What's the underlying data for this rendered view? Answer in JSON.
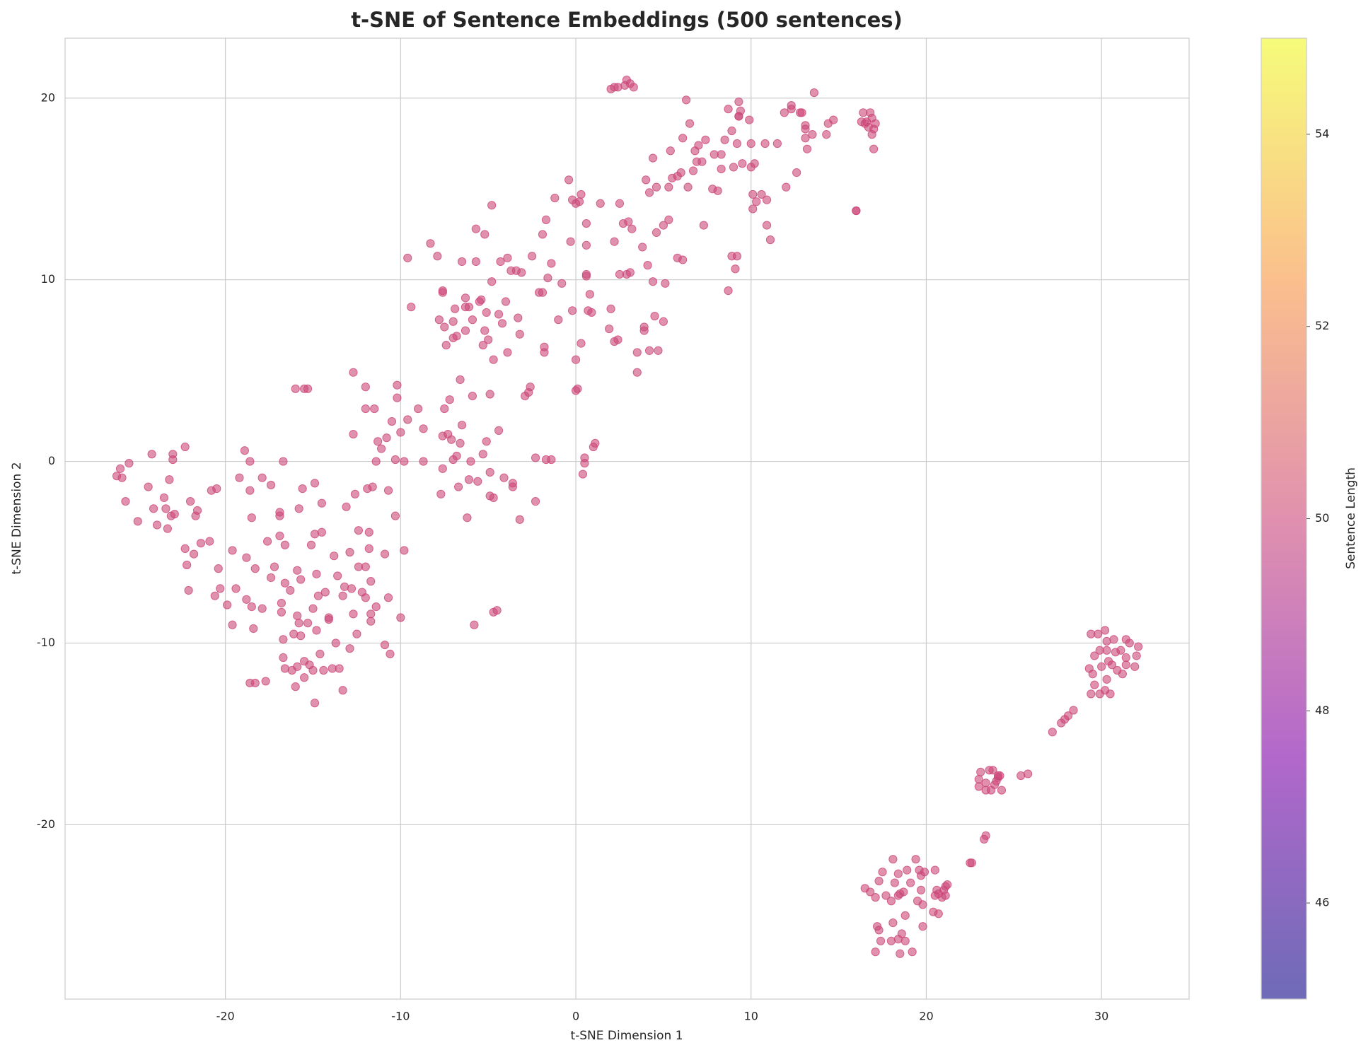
{
  "chart_data": {
    "type": "scatter",
    "title": "t-SNE of Sentence Embeddings (500 sentences)",
    "x_label": "t-SNE Dimension 1",
    "y_label": "t-SNE Dimension 2",
    "color": "#cc4778",
    "alpha": 0.6,
    "grid": true,
    "xlim": [
      -29.15,
      35.0
    ],
    "ylim": [
      -29.6,
      23.3
    ],
    "xticks": [
      -20,
      -10,
      0,
      10,
      20,
      30
    ],
    "yticks": [
      -20,
      -10,
      0,
      10,
      20
    ],
    "colorbar": {
      "label": "Sentence Length",
      "colormap": "plasma",
      "lim": [
        45,
        55
      ],
      "ticks": [
        46,
        48,
        50,
        52,
        54
      ]
    },
    "x": [
      -26.2,
      -26,
      -25.9,
      -25.7,
      -25.5,
      -25,
      -24.4,
      -24.2,
      -24.1,
      -23.9,
      -23.5,
      -23.4,
      -23.3,
      -23.2,
      -23.1,
      -23,
      -23,
      -22.9,
      -22.3,
      -22.3,
      -22.2,
      -22.1,
      -22,
      -21.8,
      -21.7,
      -21.6,
      -21.4,
      -20.9,
      -20.8,
      -20.6,
      -20.5,
      -20.4,
      -20.3,
      -19.9,
      -19.6,
      -19.6,
      -19.4,
      -19.2,
      -18.9,
      -18.8,
      -18.8,
      -18.6,
      -18.6,
      -18.6,
      -18.5,
      -18.5,
      -18.4,
      -18.3,
      -18.3,
      -17.9,
      -17.9,
      -17.7,
      -17.6,
      -17.4,
      -17.4,
      -17.2,
      -16.9,
      -16.9,
      -16.9,
      -16.8,
      -16.8,
      -16.7,
      -16.7,
      -16.7,
      -16.6,
      -16.6,
      -16.6,
      -16.3,
      -16.2,
      -16.1,
      -16,
      -16,
      -15.9,
      -15.9,
      -15.9,
      -15.8,
      -15.8,
      -15.7,
      -15.7,
      -15.6,
      -15.5,
      -15.5,
      -15.5,
      -15.3,
      -15.3,
      -15.2,
      -15.1,
      -15,
      -15,
      -14.9,
      -14.9,
      -14.9,
      -14.8,
      -14.8,
      -14.7,
      -14.6,
      -14.5,
      -14.5,
      -14.4,
      -14.3,
      -14.1,
      -14.1,
      -13.9,
      -13.8,
      -13.7,
      -13.6,
      -13.5,
      -13.3,
      -13.3,
      -13.2,
      -13.1,
      -12.9,
      -12.9,
      -12.8,
      -12.7,
      -12.7,
      -12.7,
      -12.6,
      -12.5,
      -12.4,
      -12.4,
      -12.2,
      -12,
      -12,
      -12,
      -12,
      -11.9,
      -11.8,
      -11.8,
      -11.7,
      -11.7,
      -11.7,
      -11.6,
      -11.5,
      -11.4,
      -11.4,
      -11.3,
      -11.1,
      -10.9,
      -10.9,
      -10.8,
      -10.7,
      -10.7,
      -10.6,
      -10.5,
      -10.3,
      -10.3,
      -10.2,
      -10.2,
      -10,
      -10,
      -9.8,
      -9.8,
      -9.6,
      -9.6,
      -9.4,
      -9,
      -8.7,
      -8.7,
      -8.3,
      -7.9,
      -7.8,
      -7.7,
      -7.6,
      -7.6,
      -7.6,
      -7.6,
      -7.5,
      -7.5,
      -7.4,
      -7.3,
      -7.2,
      -7.1,
      -7,
      -7,
      -7,
      -6.9,
      -6.8,
      -6.8,
      -6.7,
      -6.6,
      -6.6,
      -6.5,
      -6.5,
      -6.3,
      -6.3,
      -6.3,
      -6.2,
      -6.1,
      -6.1,
      -6,
      -5.9,
      -5.9,
      -5.8,
      -5.7,
      -5.7,
      -5.6,
      -5.5,
      -5.4,
      -5.3,
      -5.3,
      -5.2,
      -5.2,
      -5.1,
      -5.1,
      -5,
      -4.9,
      -4.9,
      -4.9,
      -4.8,
      -4.8,
      -4.7,
      -4.7,
      -4.7,
      -4.5,
      -4.4,
      -4.4,
      -4.3,
      -4.2,
      -4.1,
      -4,
      -3.9,
      -3.9,
      -3.7,
      -3.6,
      -3.6,
      -3.4,
      -3.3,
      -3.2,
      -3.2,
      -3.1,
      -2.9,
      -2.7,
      -2.5,
      -2.6,
      -2.3,
      -2.3,
      -2.1,
      -1.9,
      -1.9,
      -1.8,
      -1.8,
      -1.7,
      -1.7,
      -1.6,
      -1.4,
      -1.4,
      -1.2,
      -1,
      -0.8,
      -0.4,
      -0.3,
      -0.2,
      -0.2,
      0,
      0,
      0,
      0.1,
      0.2,
      0.3,
      0.3,
      0.4,
      0.5,
      0.5,
      0.6,
      0.6,
      0.6,
      0.6,
      0.7,
      0.8,
      0.9,
      1,
      1.1,
      1.4,
      1.9,
      2,
      2,
      2.2,
      2.2,
      2.2,
      2.4,
      2.4,
      2.5,
      2.5,
      2.7,
      2.8,
      2.9,
      2.9,
      3,
      3.1,
      3.1,
      3.2,
      3.3,
      3.5,
      3.5,
      3.8,
      3.9,
      3.9,
      4,
      4.1,
      4.2,
      4.2,
      4.4,
      4.4,
      4.5,
      4.6,
      4.6,
      4.7,
      5,
      5,
      5.1,
      5.3,
      5.3,
      5.4,
      5.5,
      5.8,
      5.8,
      6,
      6.1,
      6.1,
      6.3,
      6.4,
      6.5,
      6.7,
      6.8,
      6.9,
      7,
      7.2,
      7.3,
      7.4,
      7.8,
      7.9,
      8.1,
      8.3,
      8.3,
      8.5,
      8.7,
      8.7,
      8.9,
      8.9,
      9,
      9.1,
      9.2,
      9.2,
      9.3,
      9.3,
      9.3,
      9.4,
      9.5,
      9.9,
      10,
      10,
      10.1,
      10.1,
      10.2,
      10.3,
      10.6,
      10.8,
      10.9,
      10.9,
      11.1,
      11.5,
      11.9,
      12,
      12.3,
      12.3,
      12.6,
      12.8,
      12.9,
      13.1,
      13.1,
      13.1,
      13.2,
      13.5,
      13.6,
      14.3,
      14.4,
      14.7,
      16,
      16,
      16.3,
      16.4,
      16.6,
      16.7,
      16.8,
      16.9,
      16.9,
      17,
      17,
      17.1,
      16.5,
      29.3,
      29.4,
      29.4,
      29.5,
      29.6,
      29.6,
      29.8,
      29.9,
      29.9,
      30,
      30.2,
      30.2,
      30.3,
      30.3,
      30.3,
      30.4,
      30.5,
      30.6,
      30.7,
      30.8,
      30.9,
      31.1,
      31.2,
      31.4,
      31.4,
      31.4,
      31.6,
      31.9,
      32,
      32.1,
      27.2,
      27.7,
      27.9,
      28.1,
      28.4,
      25.4,
      25.8,
      23,
      23,
      23.1,
      23.4,
      23.4,
      23.6,
      23.7,
      23.8,
      23.9,
      24.1,
      24.1,
      24.2,
      24.3,
      24,
      23.4,
      23.3,
      22.5,
      22.6,
      16.5,
      16.8,
      17.1,
      17.1,
      17.2,
      17.3,
      17.3,
      17.4,
      17.5,
      17.7,
      18,
      18,
      18.1,
      18.1,
      18.2,
      18.4,
      18.4,
      18.4,
      18.5,
      18.5,
      18.6,
      18.7,
      18.8,
      18.8,
      18.9,
      19.1,
      19.2,
      19.4,
      19.5,
      19.6,
      19.7,
      19.7,
      19.8,
      19.8,
      19.9,
      20.4,
      20.5,
      20.5,
      20.6,
      20.7,
      20.7,
      20.9,
      21,
      21.1,
      21.1,
      21.2
    ],
    "y": [
      -0.8,
      -0.4,
      -0.9,
      -2.2,
      -0.1,
      -3.3,
      -1.4,
      0.4,
      -2.6,
      -3.5,
      -2,
      -2.6,
      -3.7,
      -1,
      -3,
      0.1,
      0.4,
      -2.9,
      0.8,
      -4.8,
      -5.7,
      -7.1,
      -2.2,
      -5.1,
      -3,
      -2.7,
      -4.5,
      -4.4,
      -1.6,
      -7.4,
      -1.5,
      -5.9,
      -7,
      -7.9,
      -9,
      -4.9,
      -7,
      -0.9,
      0.6,
      -5.3,
      -7.6,
      -12.2,
      0,
      -1.6,
      -8,
      -3.1,
      -9.2,
      -5.9,
      -12.2,
      -8.1,
      -0.9,
      -12.1,
      -4.4,
      -6.4,
      -1.3,
      -5.8,
      -4.1,
      -2.8,
      -3,
      -8.3,
      -7.8,
      -10.8,
      -9.8,
      0,
      -11.4,
      -6.7,
      -4.6,
      -7.1,
      -11.5,
      -9.5,
      4,
      -12.4,
      -8.5,
      -11.3,
      -6,
      -2.6,
      -8.9,
      -6.5,
      -9.6,
      -1.5,
      -11,
      -11.9,
      4,
      -8.9,
      4,
      -11.2,
      -4.6,
      -8.1,
      -11.5,
      -1.2,
      -13.3,
      -4,
      -6.2,
      -9.3,
      -7.4,
      -10.6,
      -3.9,
      -2.3,
      -11.5,
      -7.2,
      -8.7,
      -8.6,
      -11.4,
      -5.2,
      -10,
      -6.3,
      -11.4,
      -12.6,
      -7.4,
      -6.9,
      -2.5,
      -10.3,
      -5,
      -7,
      4.9,
      1.5,
      -8.4,
      -1.8,
      -9.5,
      -5.8,
      -3.8,
      -7.2,
      4.1,
      2.9,
      -5.8,
      -7.5,
      -1.5,
      -3.9,
      -4.8,
      -6.6,
      -8.4,
      -8.8,
      -1.4,
      2.9,
      -8,
      0,
      1.1,
      0.7,
      -5.1,
      -10.1,
      1.3,
      -1.6,
      -7.5,
      -10.6,
      2.2,
      -3,
      0.1,
      3.5,
      4.2,
      -8.6,
      1.6,
      -4.9,
      0,
      11.2,
      2.3,
      8.5,
      2.9,
      1.8,
      0,
      12,
      11.3,
      7.8,
      -1.8,
      9.3,
      9.4,
      1.4,
      -0.4,
      7.4,
      2.9,
      6.4,
      1.5,
      3.4,
      1.2,
      7.7,
      6.8,
      0.1,
      8.4,
      6.9,
      0.3,
      -1.4,
      4.5,
      1,
      11,
      2,
      9,
      8.5,
      7.2,
      -3.1,
      8.5,
      -1,
      0,
      7.8,
      3.6,
      -9,
      12.8,
      11,
      -1.1,
      8.8,
      8.9,
      6.4,
      0.4,
      12.5,
      7.2,
      8.2,
      1.1,
      6.7,
      3.7,
      -0.6,
      -1.9,
      14.1,
      9.9,
      5.6,
      -2,
      -8.3,
      -8.2,
      8.1,
      1.7,
      11,
      7.6,
      -0.9,
      8.8,
      11.2,
      6,
      10.5,
      -1.2,
      -1.4,
      10.5,
      7.9,
      -3.2,
      7,
      10.4,
      3.6,
      3.8,
      11.3,
      4.1,
      0.2,
      -2.2,
      9.3,
      12.5,
      9.3,
      6.3,
      6,
      13.3,
      0.1,
      10.1,
      10.9,
      0.1,
      14.5,
      7.8,
      9.8,
      15.5,
      12.1,
      8.3,
      14.4,
      14.2,
      5.6,
      3.9,
      4,
      14.3,
      14.7,
      6.5,
      -0.7,
      -0.1,
      0.2,
      11.9,
      10.2,
      10.3,
      13.1,
      8.3,
      9.2,
      8.2,
      0.8,
      1,
      14.2,
      7.3,
      20.5,
      8.4,
      12.1,
      6.6,
      20.6,
      20.6,
      6.7,
      14.2,
      10.3,
      13.1,
      20.7,
      21,
      10.3,
      13.2,
      10.4,
      20.8,
      12.8,
      20.6,
      4.9,
      6,
      11.8,
      7.4,
      7.2,
      15.5,
      10.8,
      14.8,
      6.1,
      9.9,
      16.7,
      8,
      12.6,
      15.1,
      6.1,
      13,
      7.7,
      9.8,
      13.3,
      15.1,
      17.1,
      15.6,
      15.7,
      11.2,
      15.9,
      11.1,
      17.8,
      19.9,
      15.1,
      18.6,
      16,
      17.1,
      16.5,
      17.4,
      16.5,
      13,
      17.7,
      15,
      16.9,
      14.9,
      16.1,
      16.9,
      17.7,
      19.4,
      9.4,
      18.2,
      11.3,
      16.2,
      10.6,
      11.3,
      17.5,
      19.8,
      19,
      19,
      19.3,
      16.4,
      18.8,
      16.2,
      17.5,
      14.7,
      13.9,
      16.4,
      14.3,
      14.7,
      17.5,
      13,
      14.4,
      12.2,
      17.5,
      19.2,
      15.1,
      19.4,
      19.6,
      15.9,
      19.2,
      19.2,
      18.5,
      17.8,
      18.3,
      17.2,
      18,
      20.3,
      18,
      18.6,
      18.8,
      13.8,
      13.8,
      18.7,
      19.2,
      18.7,
      18.4,
      19.2,
      18.9,
      18,
      18.3,
      17.2,
      18.6,
      18.6,
      -11.4,
      -9.5,
      -12.8,
      -11.7,
      -10.7,
      -12.3,
      -9.5,
      -10.4,
      -12.8,
      -11.3,
      -9.3,
      -12.6,
      -10.4,
      -9.9,
      -12,
      -11,
      -12.8,
      -11.2,
      -9.8,
      -10.5,
      -11.5,
      -10.4,
      -11.7,
      -9.8,
      -10.8,
      -11.2,
      -10,
      -11.3,
      -10.7,
      -10.2,
      -14.9,
      -14.4,
      -14.2,
      -14,
      -13.7,
      -17.3,
      -17.2,
      -17.5,
      -17.9,
      -17.1,
      -17.7,
      -18.1,
      -17,
      -18.1,
      -17,
      -17.8,
      -17.3,
      -17.4,
      -17.3,
      -18.1,
      -17.6,
      -20.6,
      -20.8,
      -22.1,
      -22.1,
      -23.5,
      -23.7,
      -27,
      -24,
      -25.6,
      -23.1,
      -25.8,
      -26.4,
      -22.6,
      -23.9,
      -24.2,
      -26.4,
      -25.4,
      -21.9,
      -23.2,
      -23.9,
      -26.3,
      -22.7,
      -23.8,
      -27.1,
      -26,
      -23.7,
      -26.4,
      -25,
      -22.5,
      -23.2,
      -27,
      -21.9,
      -24.2,
      -22.5,
      -22.8,
      -23.6,
      -25.6,
      -24.4,
      -22.6,
      -24.8,
      -23.9,
      -22.5,
      -23.6,
      -24.9,
      -23.8,
      -24,
      -23.6,
      -23.9,
      -23.4,
      -23.3
    ]
  }
}
